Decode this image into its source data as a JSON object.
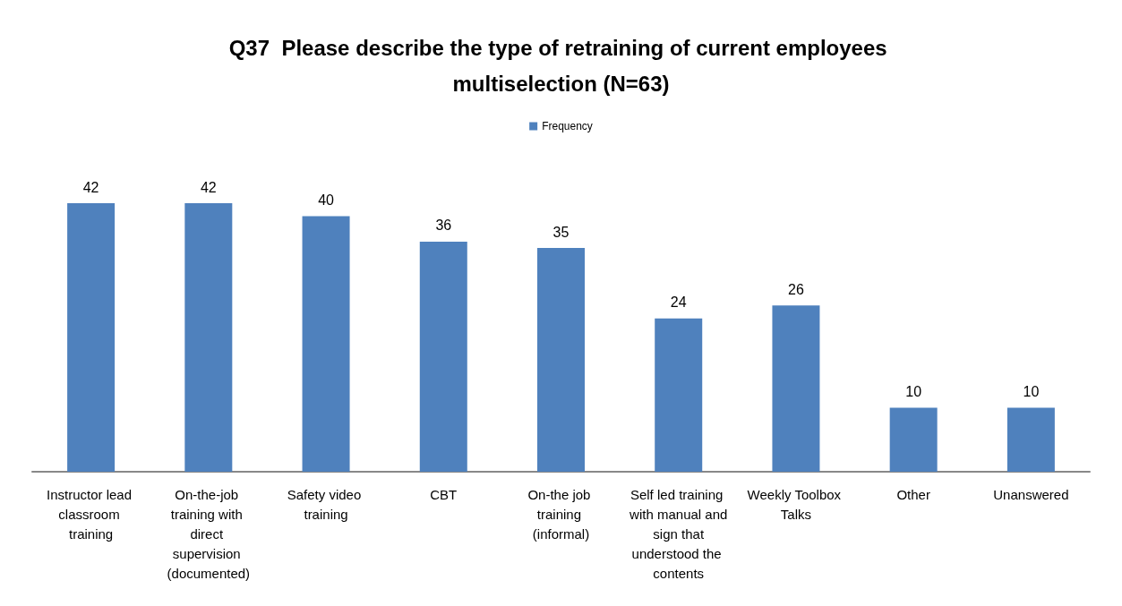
{
  "chart_data": {
    "type": "bar",
    "title": "Q37  Please describe the type of retraining of current employees multiselection (N=63)",
    "categories": [
      "Instructor lead classroom training",
      "On-the-job training with direct supervision (documented)",
      "Safety video training",
      "CBT",
      "On-the job training (informal)",
      "Self led training with manual and sign that understood the contents",
      "Weekly Toolbox Talks",
      "Other",
      "Unanswered"
    ],
    "series": [
      {
        "name": "Frequency",
        "color": "#4f81bd",
        "values": [
          42,
          42,
          40,
          36,
          35,
          24,
          26,
          10,
          10
        ]
      }
    ],
    "data_labels": true,
    "legend": "top"
  }
}
